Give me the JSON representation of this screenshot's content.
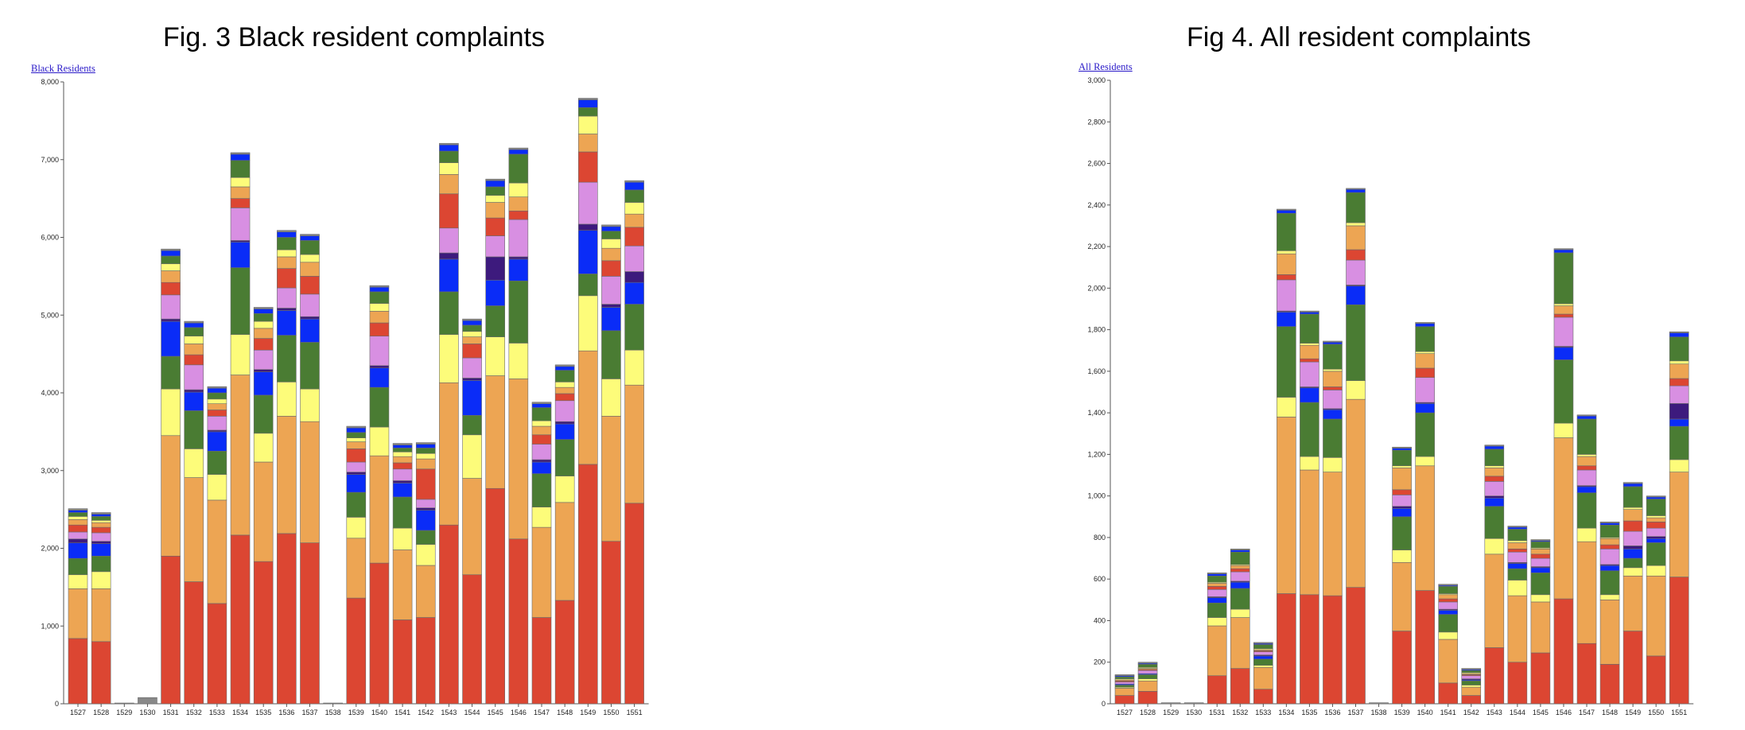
{
  "chart_data": [
    {
      "type": "bar",
      "stacked": true,
      "title": "Fig. 3 Black resident complaints",
      "legend_label": "Black Residents",
      "legend_placement": "top-left",
      "grid": false,
      "ylim": [
        0,
        8000
      ],
      "y_ticks": [
        "0",
        "1,000",
        "2,000",
        "3,000",
        "4,000",
        "5,000",
        "6,000",
        "7,000",
        "8,000"
      ],
      "y_tick_values": [
        0,
        1000,
        2000,
        3000,
        4000,
        5000,
        6000,
        7000,
        8000
      ],
      "categories": [
        "1527",
        "1528",
        "1529",
        "1530",
        "1531",
        "1532",
        "1533",
        "1534",
        "1535",
        "1536",
        "1537",
        "1538",
        "1539",
        "1540",
        "1541",
        "1542",
        "1543",
        "1544",
        "1545",
        "1546",
        "1547",
        "1548",
        "1549",
        "1550",
        "1551"
      ],
      "series": [
        {
          "color": "#dc4632",
          "values": [
            840,
            800,
            0,
            0,
            1900,
            1570,
            1290,
            2170,
            1830,
            2190,
            2070,
            0,
            1360,
            1810,
            1080,
            1110,
            2300,
            1660,
            2770,
            2120,
            1110,
            1330,
            3080,
            2090,
            2580
          ]
        },
        {
          "color": "#eda553",
          "values": [
            640,
            680,
            0,
            0,
            1550,
            1340,
            1330,
            2060,
            1280,
            1510,
            1560,
            0,
            770,
            1380,
            900,
            670,
            1830,
            1240,
            1450,
            2060,
            1160,
            1260,
            1460,
            1610,
            1520
          ]
        },
        {
          "color": "#fdfc7a",
          "values": [
            180,
            220,
            0,
            0,
            600,
            370,
            330,
            520,
            370,
            440,
            420,
            0,
            270,
            370,
            280,
            270,
            620,
            560,
            500,
            460,
            260,
            340,
            710,
            480,
            450
          ]
        },
        {
          "color": "#4a7c33",
          "values": [
            210,
            200,
            0,
            0,
            420,
            490,
            300,
            860,
            490,
            600,
            600,
            0,
            320,
            510,
            400,
            180,
            550,
            250,
            400,
            800,
            430,
            470,
            280,
            620,
            590
          ]
        },
        {
          "color": "#0a2cf7",
          "values": [
            200,
            160,
            0,
            0,
            450,
            240,
            250,
            330,
            300,
            320,
            300,
            0,
            230,
            250,
            180,
            260,
            420,
            450,
            330,
            280,
            150,
            200,
            560,
            300,
            280
          ]
        },
        {
          "color": "#3d1a7d",
          "values": [
            50,
            30,
            0,
            0,
            30,
            30,
            20,
            20,
            30,
            30,
            30,
            0,
            30,
            30,
            30,
            30,
            80,
            30,
            300,
            30,
            30,
            30,
            80,
            40,
            140
          ]
        },
        {
          "color": "#d88fe2",
          "values": [
            90,
            110,
            0,
            0,
            310,
            320,
            180,
            420,
            250,
            260,
            290,
            0,
            130,
            380,
            150,
            110,
            320,
            260,
            270,
            480,
            200,
            270,
            540,
            360,
            330
          ]
        },
        {
          "color": "#dc4632",
          "values": [
            90,
            70,
            0,
            0,
            160,
            130,
            80,
            120,
            150,
            250,
            230,
            0,
            170,
            170,
            80,
            390,
            440,
            180,
            230,
            110,
            120,
            90,
            390,
            200,
            240
          ]
        },
        {
          "color": "#eda553",
          "values": [
            70,
            60,
            0,
            0,
            150,
            140,
            80,
            150,
            130,
            150,
            180,
            0,
            90,
            150,
            80,
            130,
            250,
            90,
            200,
            180,
            110,
            80,
            230,
            160,
            170
          ]
        },
        {
          "color": "#fdfc7a",
          "values": [
            40,
            30,
            0,
            0,
            90,
            100,
            60,
            120,
            90,
            90,
            100,
            0,
            50,
            100,
            60,
            70,
            150,
            70,
            90,
            180,
            70,
            70,
            230,
            120,
            150
          ]
        },
        {
          "color": "#4a7c33",
          "values": [
            50,
            50,
            0,
            0,
            100,
            110,
            80,
            220,
            100,
            160,
            180,
            0,
            70,
            150,
            50,
            70,
            150,
            80,
            110,
            370,
            170,
            150,
            110,
            100,
            160
          ]
        },
        {
          "color": "#0a2cf7",
          "values": [
            30,
            30,
            0,
            0,
            70,
            60,
            60,
            80,
            60,
            70,
            60,
            0,
            60,
            60,
            40,
            50,
            80,
            60,
            80,
            60,
            50,
            50,
            100,
            60,
            100
          ]
        },
        {
          "color": "#888888",
          "values": [
            20,
            20,
            10,
            80,
            20,
            20,
            20,
            20,
            20,
            20,
            20,
            10,
            20,
            20,
            20,
            20,
            20,
            20,
            20,
            20,
            20,
            20,
            20,
            20,
            20
          ]
        }
      ]
    },
    {
      "type": "bar",
      "stacked": true,
      "title": "Fig 4. All resident complaints",
      "legend_label": "All Residents",
      "legend_placement": "top-left",
      "grid": false,
      "ylim": [
        0,
        3000
      ],
      "y_ticks": [
        "0",
        "200",
        "400",
        "600",
        "800",
        "1,000",
        "1,200",
        "1,400",
        "1,600",
        "1,800",
        "2,000",
        "2,200",
        "2,400",
        "2,600",
        "2,800",
        "3,000"
      ],
      "y_tick_values": [
        0,
        200,
        400,
        600,
        800,
        1000,
        1200,
        1400,
        1600,
        1800,
        2000,
        2200,
        2400,
        2600,
        2800,
        3000
      ],
      "categories": [
        "1527",
        "1528",
        "1529",
        "1530",
        "1531",
        "1532",
        "1533",
        "1534",
        "1535",
        "1536",
        "1537",
        "1538",
        "1539",
        "1540",
        "1541",
        "1542",
        "1543",
        "1544",
        "1545",
        "1546",
        "1547",
        "1548",
        "1549",
        "1550",
        "1551"
      ],
      "series": [
        {
          "color": "#dc4632",
          "values": [
            40,
            60,
            0,
            0,
            135,
            170,
            70,
            530,
            525,
            520,
            560,
            0,
            350,
            545,
            100,
            40,
            270,
            200,
            245,
            505,
            290,
            190,
            350,
            230,
            610
          ]
        },
        {
          "color": "#eda553",
          "values": [
            35,
            50,
            0,
            0,
            240,
            245,
            105,
            850,
            600,
            595,
            905,
            0,
            330,
            600,
            210,
            40,
            450,
            320,
            245,
            775,
            490,
            310,
            265,
            385,
            505
          ]
        },
        {
          "color": "#fdfc7a",
          "values": [
            5,
            10,
            0,
            0,
            40,
            40,
            10,
            95,
            65,
            70,
            90,
            0,
            60,
            45,
            35,
            10,
            75,
            75,
            35,
            70,
            65,
            25,
            40,
            50,
            60
          ]
        },
        {
          "color": "#4a7c33",
          "values": [
            10,
            20,
            0,
            0,
            70,
            100,
            30,
            340,
            260,
            185,
            365,
            0,
            160,
            210,
            85,
            20,
            155,
            55,
            105,
            305,
            170,
            115,
            45,
            110,
            160
          ]
        },
        {
          "color": "#0a2cf7",
          "values": [
            5,
            5,
            0,
            0,
            25,
            30,
            15,
            70,
            70,
            45,
            90,
            0,
            40,
            45,
            20,
            5,
            40,
            25,
            25,
            60,
            30,
            25,
            45,
            20,
            35
          ]
        },
        {
          "color": "#3d1a7d",
          "values": [
            0,
            0,
            0,
            0,
            5,
            5,
            5,
            5,
            5,
            5,
            5,
            0,
            10,
            5,
            5,
            5,
            10,
            5,
            5,
            5,
            5,
            5,
            15,
            10,
            75
          ]
        },
        {
          "color": "#d88fe2",
          "values": [
            10,
            15,
            0,
            0,
            35,
            45,
            15,
            150,
            120,
            90,
            120,
            0,
            55,
            120,
            35,
            15,
            70,
            50,
            40,
            140,
            75,
            75,
            70,
            40,
            85
          ]
        },
        {
          "color": "#dc4632",
          "values": [
            5,
            5,
            0,
            0,
            15,
            15,
            5,
            25,
            15,
            15,
            50,
            0,
            25,
            45,
            15,
            5,
            25,
            15,
            20,
            15,
            20,
            20,
            50,
            30,
            35
          ]
        },
        {
          "color": "#eda553",
          "values": [
            5,
            5,
            0,
            0,
            15,
            15,
            5,
            100,
            65,
            75,
            115,
            0,
            105,
            70,
            20,
            5,
            40,
            30,
            25,
            40,
            45,
            30,
            55,
            20,
            70
          ]
        },
        {
          "color": "#fdfc7a",
          "values": [
            5,
            5,
            0,
            0,
            5,
            5,
            5,
            15,
            10,
            10,
            15,
            0,
            10,
            10,
            5,
            5,
            10,
            10,
            5,
            10,
            10,
            5,
            10,
            10,
            15
          ]
        },
        {
          "color": "#4a7c33",
          "values": [
            10,
            15,
            0,
            0,
            30,
            60,
            20,
            180,
            140,
            120,
            145,
            0,
            75,
            120,
            35,
            10,
            80,
            55,
            30,
            245,
            170,
            60,
            100,
            80,
            115
          ]
        },
        {
          "color": "#0a2cf7",
          "values": [
            5,
            5,
            0,
            0,
            10,
            10,
            5,
            15,
            10,
            10,
            15,
            0,
            10,
            15,
            5,
            5,
            15,
            10,
            5,
            15,
            15,
            10,
            15,
            10,
            20
          ]
        },
        {
          "color": "#888888",
          "values": [
            5,
            5,
            5,
            5,
            5,
            5,
            5,
            5,
            5,
            5,
            5,
            5,
            5,
            5,
            5,
            5,
            5,
            5,
            5,
            5,
            5,
            5,
            5,
            5,
            5
          ]
        }
      ]
    }
  ]
}
